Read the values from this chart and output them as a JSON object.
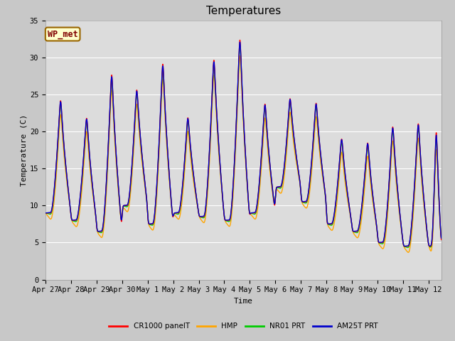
{
  "title": "Temperatures",
  "xlabel": "Time",
  "ylabel": "Temperature (C)",
  "ylim": [
    0,
    35
  ],
  "background_color": "#dcdcdc",
  "plot_bg_color": "#dcdcdc",
  "fig_bg_color": "#c8c8c8",
  "grid_color": "#ffffff",
  "legend_entries": [
    "CR1000 panelT",
    "HMP",
    "NR01 PRT",
    "AM25T PRT"
  ],
  "legend_colors": [
    "#ff0000",
    "#ffa500",
    "#00cc00",
    "#0000cc"
  ],
  "annotation_text": "WP_met",
  "annotation_bg": "#ffffcc",
  "annotation_border": "#996600",
  "tick_labels": [
    "Apr 27",
    "Apr 28",
    "Apr 29",
    "Apr 30",
    "May 1",
    "May 2",
    "May 3",
    "May 4",
    "May 5",
    "May 6",
    "May 7",
    "May 8",
    "May 9",
    "May 10",
    "May 11",
    "May 12"
  ],
  "yticks": [
    0,
    5,
    10,
    15,
    20,
    25,
    30,
    35
  ],
  "title_fontsize": 11,
  "axis_fontsize": 8,
  "tick_fontsize": 7.5,
  "linewidth": 1.0
}
